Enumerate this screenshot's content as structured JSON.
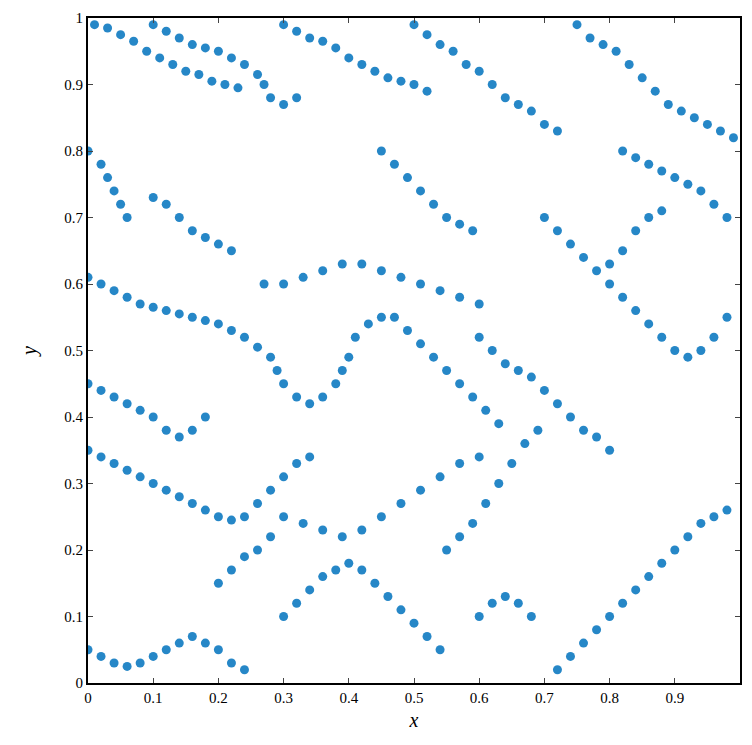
{
  "chart_data": {
    "type": "scatter",
    "x_label": "x",
    "y_label": "y",
    "color": "#0072BD",
    "marker": "dot",
    "grid": false,
    "xlim": [
      0,
      1
    ],
    "ylim": [
      0,
      1
    ],
    "xticks": [
      0,
      0.1,
      0.2,
      0.3,
      0.4,
      0.5,
      0.6,
      0.7,
      0.8,
      0.9
    ],
    "yticks": [
      0,
      0.1,
      0.2,
      0.3,
      0.4,
      0.5,
      0.6,
      0.7,
      0.8,
      0.9,
      1
    ],
    "x": [
      0.01,
      0.03,
      0.05,
      0.07,
      0.09,
      0.11,
      0.13,
      0.15,
      0.17,
      0.19,
      0.21,
      0.23,
      0.1,
      0.12,
      0.14,
      0.16,
      0.18,
      0.2,
      0.22,
      0.24,
      0.26,
      0.27,
      0.28,
      0.3,
      0.32,
      0.3,
      0.32,
      0.34,
      0.36,
      0.38,
      0.4,
      0.42,
      0.44,
      0.46,
      0.48,
      0.5,
      0.52,
      0.5,
      0.52,
      0.54,
      0.56,
      0.58,
      0.6,
      0.62,
      0.64,
      0.66,
      0.68,
      0.7,
      0.72,
      0.75,
      0.77,
      0.79,
      0.81,
      0.83,
      0.85,
      0.87,
      0.89,
      0.91,
      0.93,
      0.95,
      0.97,
      0.99,
      0.82,
      0.84,
      0.86,
      0.88,
      0.9,
      0.92,
      0.94,
      0.96,
      0.98,
      0.0,
      0.02,
      0.04,
      0.06,
      0.08,
      0.1,
      0.12,
      0.14,
      0.16,
      0.18,
      0.2,
      0.22,
      0.24,
      0.26,
      0.28,
      0.29,
      0.3,
      0.32,
      0.34,
      0.36,
      0.38,
      0.39,
      0.4,
      0.27,
      0.3,
      0.33,
      0.36,
      0.39,
      0.42,
      0.45,
      0.48,
      0.51,
      0.54,
      0.57,
      0.6,
      0.41,
      0.43,
      0.45,
      0.47,
      0.49,
      0.51,
      0.53,
      0.55,
      0.57,
      0.59,
      0.61,
      0.63,
      0.6,
      0.62,
      0.64,
      0.66,
      0.68,
      0.7,
      0.72,
      0.74,
      0.76,
      0.78,
      0.8,
      0.8,
      0.82,
      0.84,
      0.86,
      0.88,
      0.9,
      0.92,
      0.94,
      0.96,
      0.98,
      0.7,
      0.72,
      0.74,
      0.76,
      0.78,
      0.8,
      0.82,
      0.84,
      0.86,
      0.88,
      0.0,
      0.02,
      0.04,
      0.06,
      0.08,
      0.1,
      0.12,
      0.14,
      0.16,
      0.18,
      0.2,
      0.22,
      0.24,
      0.26,
      0.28,
      0.3,
      0.32,
      0.34,
      0.3,
      0.33,
      0.36,
      0.39,
      0.42,
      0.45,
      0.48,
      0.51,
      0.54,
      0.57,
      0.6,
      0.0,
      0.02,
      0.04,
      0.06,
      0.08,
      0.1,
      0.12,
      0.14,
      0.16,
      0.18,
      0.2,
      0.22,
      0.24,
      0.3,
      0.32,
      0.34,
      0.36,
      0.38,
      0.4,
      0.42,
      0.44,
      0.46,
      0.48,
      0.5,
      0.52,
      0.54,
      0.55,
      0.57,
      0.59,
      0.61,
      0.63,
      0.65,
      0.67,
      0.69,
      0.72,
      0.74,
      0.76,
      0.78,
      0.8,
      0.82,
      0.84,
      0.86,
      0.88,
      0.9,
      0.92,
      0.94,
      0.96,
      0.98,
      0.6,
      0.62,
      0.64,
      0.66,
      0.68,
      0.0,
      0.02,
      0.03,
      0.04,
      0.05,
      0.06,
      0.1,
      0.12,
      0.14,
      0.16,
      0.18,
      0.2,
      0.22,
      0.45,
      0.47,
      0.49,
      0.51,
      0.53,
      0.55,
      0.57,
      0.59,
      0.0,
      0.02,
      0.04,
      0.06,
      0.08,
      0.1,
      0.12,
      0.14,
      0.16,
      0.18,
      0.2,
      0.22,
      0.24,
      0.26,
      0.28
    ],
    "values": [
      0.99,
      0.985,
      0.975,
      0.965,
      0.95,
      0.94,
      0.93,
      0.92,
      0.915,
      0.905,
      0.9,
      0.895,
      0.99,
      0.98,
      0.97,
      0.96,
      0.955,
      0.95,
      0.94,
      0.93,
      0.915,
      0.9,
      0.88,
      0.87,
      0.88,
      0.99,
      0.98,
      0.97,
      0.965,
      0.955,
      0.94,
      0.93,
      0.92,
      0.91,
      0.905,
      0.9,
      0.89,
      0.99,
      0.975,
      0.96,
      0.95,
      0.93,
      0.92,
      0.9,
      0.88,
      0.87,
      0.86,
      0.84,
      0.83,
      0.99,
      0.97,
      0.96,
      0.95,
      0.93,
      0.91,
      0.89,
      0.87,
      0.86,
      0.85,
      0.84,
      0.83,
      0.82,
      0.8,
      0.79,
      0.78,
      0.77,
      0.76,
      0.75,
      0.74,
      0.72,
      0.7,
      0.61,
      0.6,
      0.59,
      0.58,
      0.57,
      0.565,
      0.56,
      0.555,
      0.55,
      0.545,
      0.54,
      0.53,
      0.52,
      0.505,
      0.49,
      0.47,
      0.45,
      0.43,
      0.42,
      0.43,
      0.45,
      0.47,
      0.49,
      0.6,
      0.6,
      0.61,
      0.62,
      0.63,
      0.63,
      0.62,
      0.61,
      0.6,
      0.59,
      0.58,
      0.57,
      0.52,
      0.54,
      0.55,
      0.55,
      0.53,
      0.51,
      0.49,
      0.47,
      0.45,
      0.43,
      0.41,
      0.39,
      0.52,
      0.5,
      0.48,
      0.47,
      0.46,
      0.44,
      0.42,
      0.4,
      0.38,
      0.37,
      0.35,
      0.6,
      0.58,
      0.56,
      0.54,
      0.52,
      0.5,
      0.49,
      0.5,
      0.52,
      0.55,
      0.7,
      0.68,
      0.66,
      0.64,
      0.62,
      0.63,
      0.65,
      0.68,
      0.7,
      0.71,
      0.35,
      0.34,
      0.33,
      0.32,
      0.31,
      0.3,
      0.29,
      0.28,
      0.27,
      0.26,
      0.25,
      0.245,
      0.25,
      0.27,
      0.29,
      0.31,
      0.33,
      0.34,
      0.25,
      0.24,
      0.23,
      0.22,
      0.23,
      0.25,
      0.27,
      0.29,
      0.31,
      0.33,
      0.34,
      0.05,
      0.04,
      0.03,
      0.025,
      0.03,
      0.04,
      0.05,
      0.06,
      0.07,
      0.06,
      0.05,
      0.03,
      0.02,
      0.1,
      0.12,
      0.14,
      0.16,
      0.17,
      0.18,
      0.17,
      0.15,
      0.13,
      0.11,
      0.09,
      0.07,
      0.05,
      0.2,
      0.22,
      0.24,
      0.27,
      0.3,
      0.33,
      0.36,
      0.38,
      0.02,
      0.04,
      0.06,
      0.08,
      0.1,
      0.12,
      0.14,
      0.16,
      0.18,
      0.2,
      0.22,
      0.24,
      0.25,
      0.26,
      0.1,
      0.12,
      0.13,
      0.12,
      0.1,
      0.8,
      0.78,
      0.76,
      0.74,
      0.72,
      0.7,
      0.73,
      0.72,
      0.7,
      0.68,
      0.67,
      0.66,
      0.65,
      0.8,
      0.78,
      0.76,
      0.74,
      0.72,
      0.7,
      0.69,
      0.68,
      0.45,
      0.44,
      0.43,
      0.42,
      0.41,
      0.4,
      0.38,
      0.37,
      0.38,
      0.4,
      0.15,
      0.17,
      0.19,
      0.2,
      0.22
    ]
  }
}
